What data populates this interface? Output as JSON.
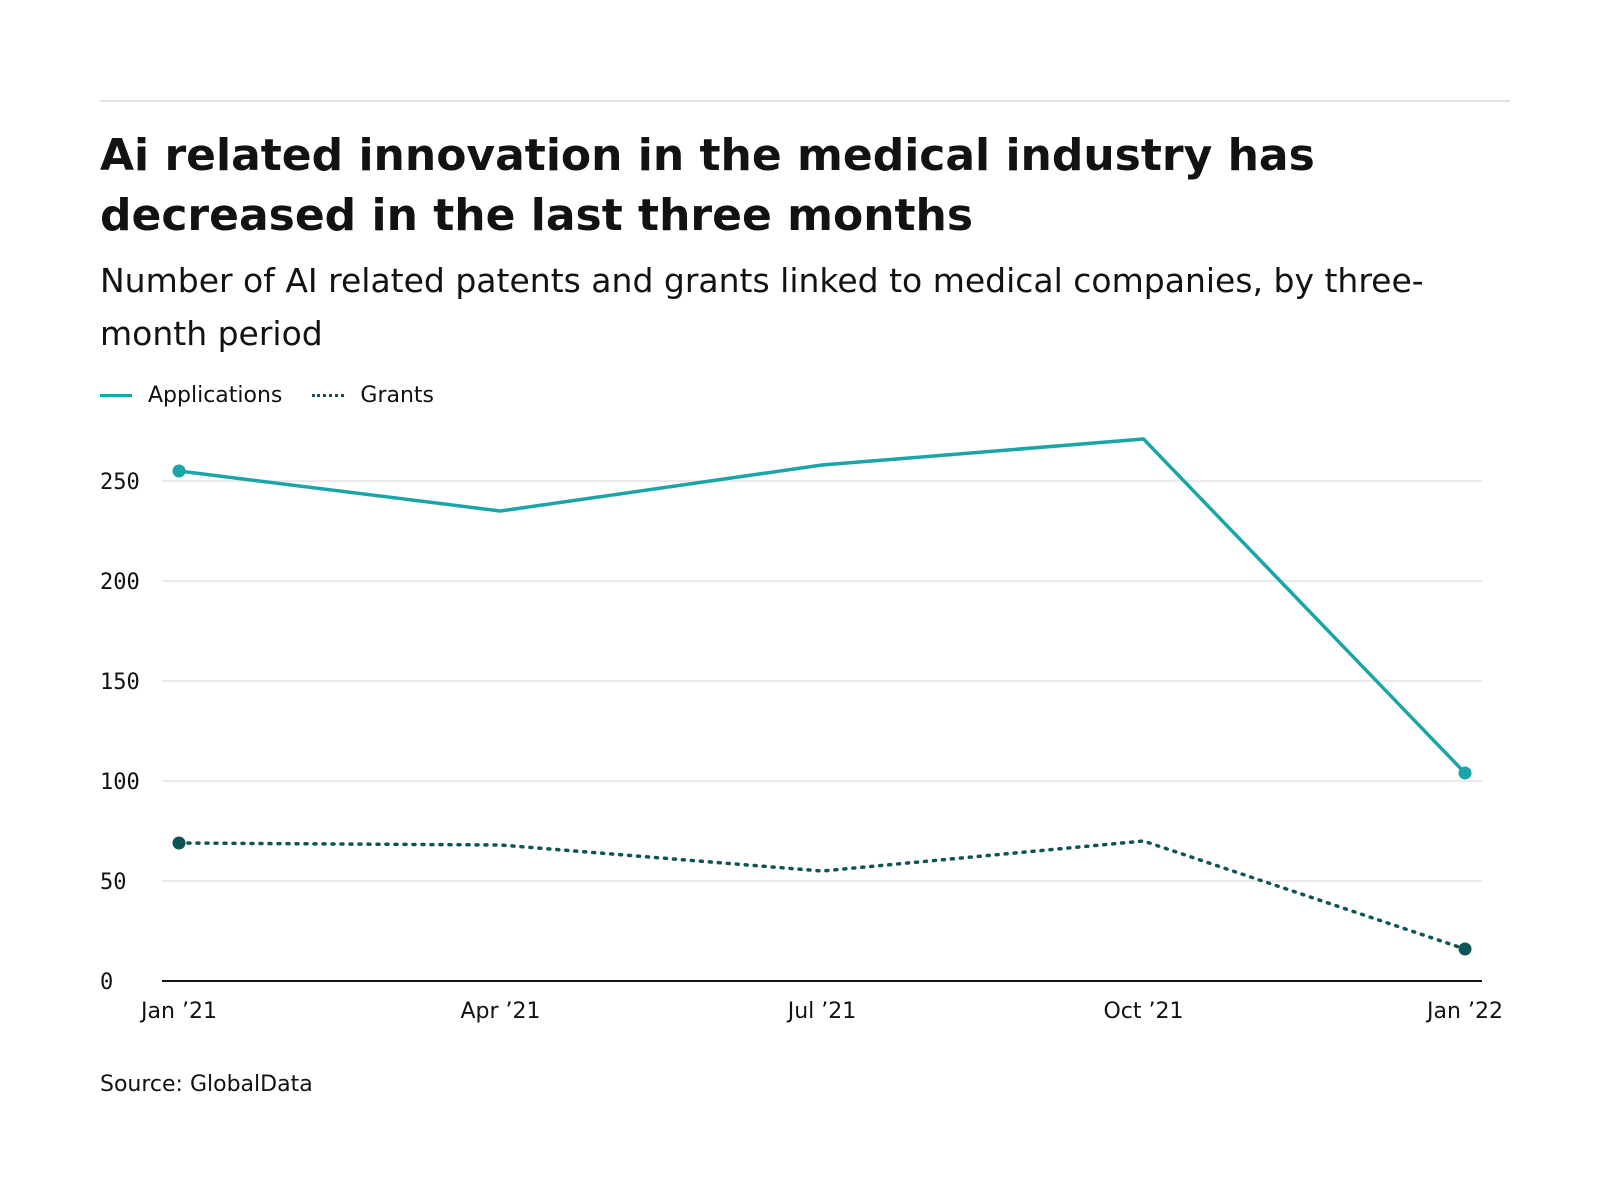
{
  "header": {
    "title": "Ai related innovation in the medical industry has decreased in the last three months",
    "subtitle": "Number of AI related patents and grants linked to medical companies, by three-month period"
  },
  "legend": {
    "applications_label": "Applications",
    "grants_label": "Grants"
  },
  "footer": {
    "source": "Source: GlobalData"
  },
  "colors": {
    "applications": "#1aa5a8",
    "grants": "#0f5558",
    "gridline": "#e4e4e4",
    "axis": "#121212"
  },
  "chart_data": {
    "type": "line",
    "title": "Ai related innovation in the medical industry has decreased in the last three months",
    "subtitle": "Number of AI related patents and grants linked to medical companies, by three-month period",
    "xlabel": "",
    "ylabel": "",
    "categories": [
      "Jan ’21",
      "Apr ’21",
      "Jul ’21",
      "Oct ’21",
      "Jan ’22"
    ],
    "yticks": [
      0,
      50,
      100,
      150,
      200,
      250
    ],
    "ylim": [
      0,
      250
    ],
    "grid": true,
    "legend_position": "top-left",
    "series": [
      {
        "name": "Applications",
        "style": "solid",
        "values": [
          255,
          235,
          258,
          271,
          104
        ]
      },
      {
        "name": "Grants",
        "style": "dotted",
        "values": [
          69,
          68,
          55,
          70,
          16
        ]
      }
    ]
  }
}
